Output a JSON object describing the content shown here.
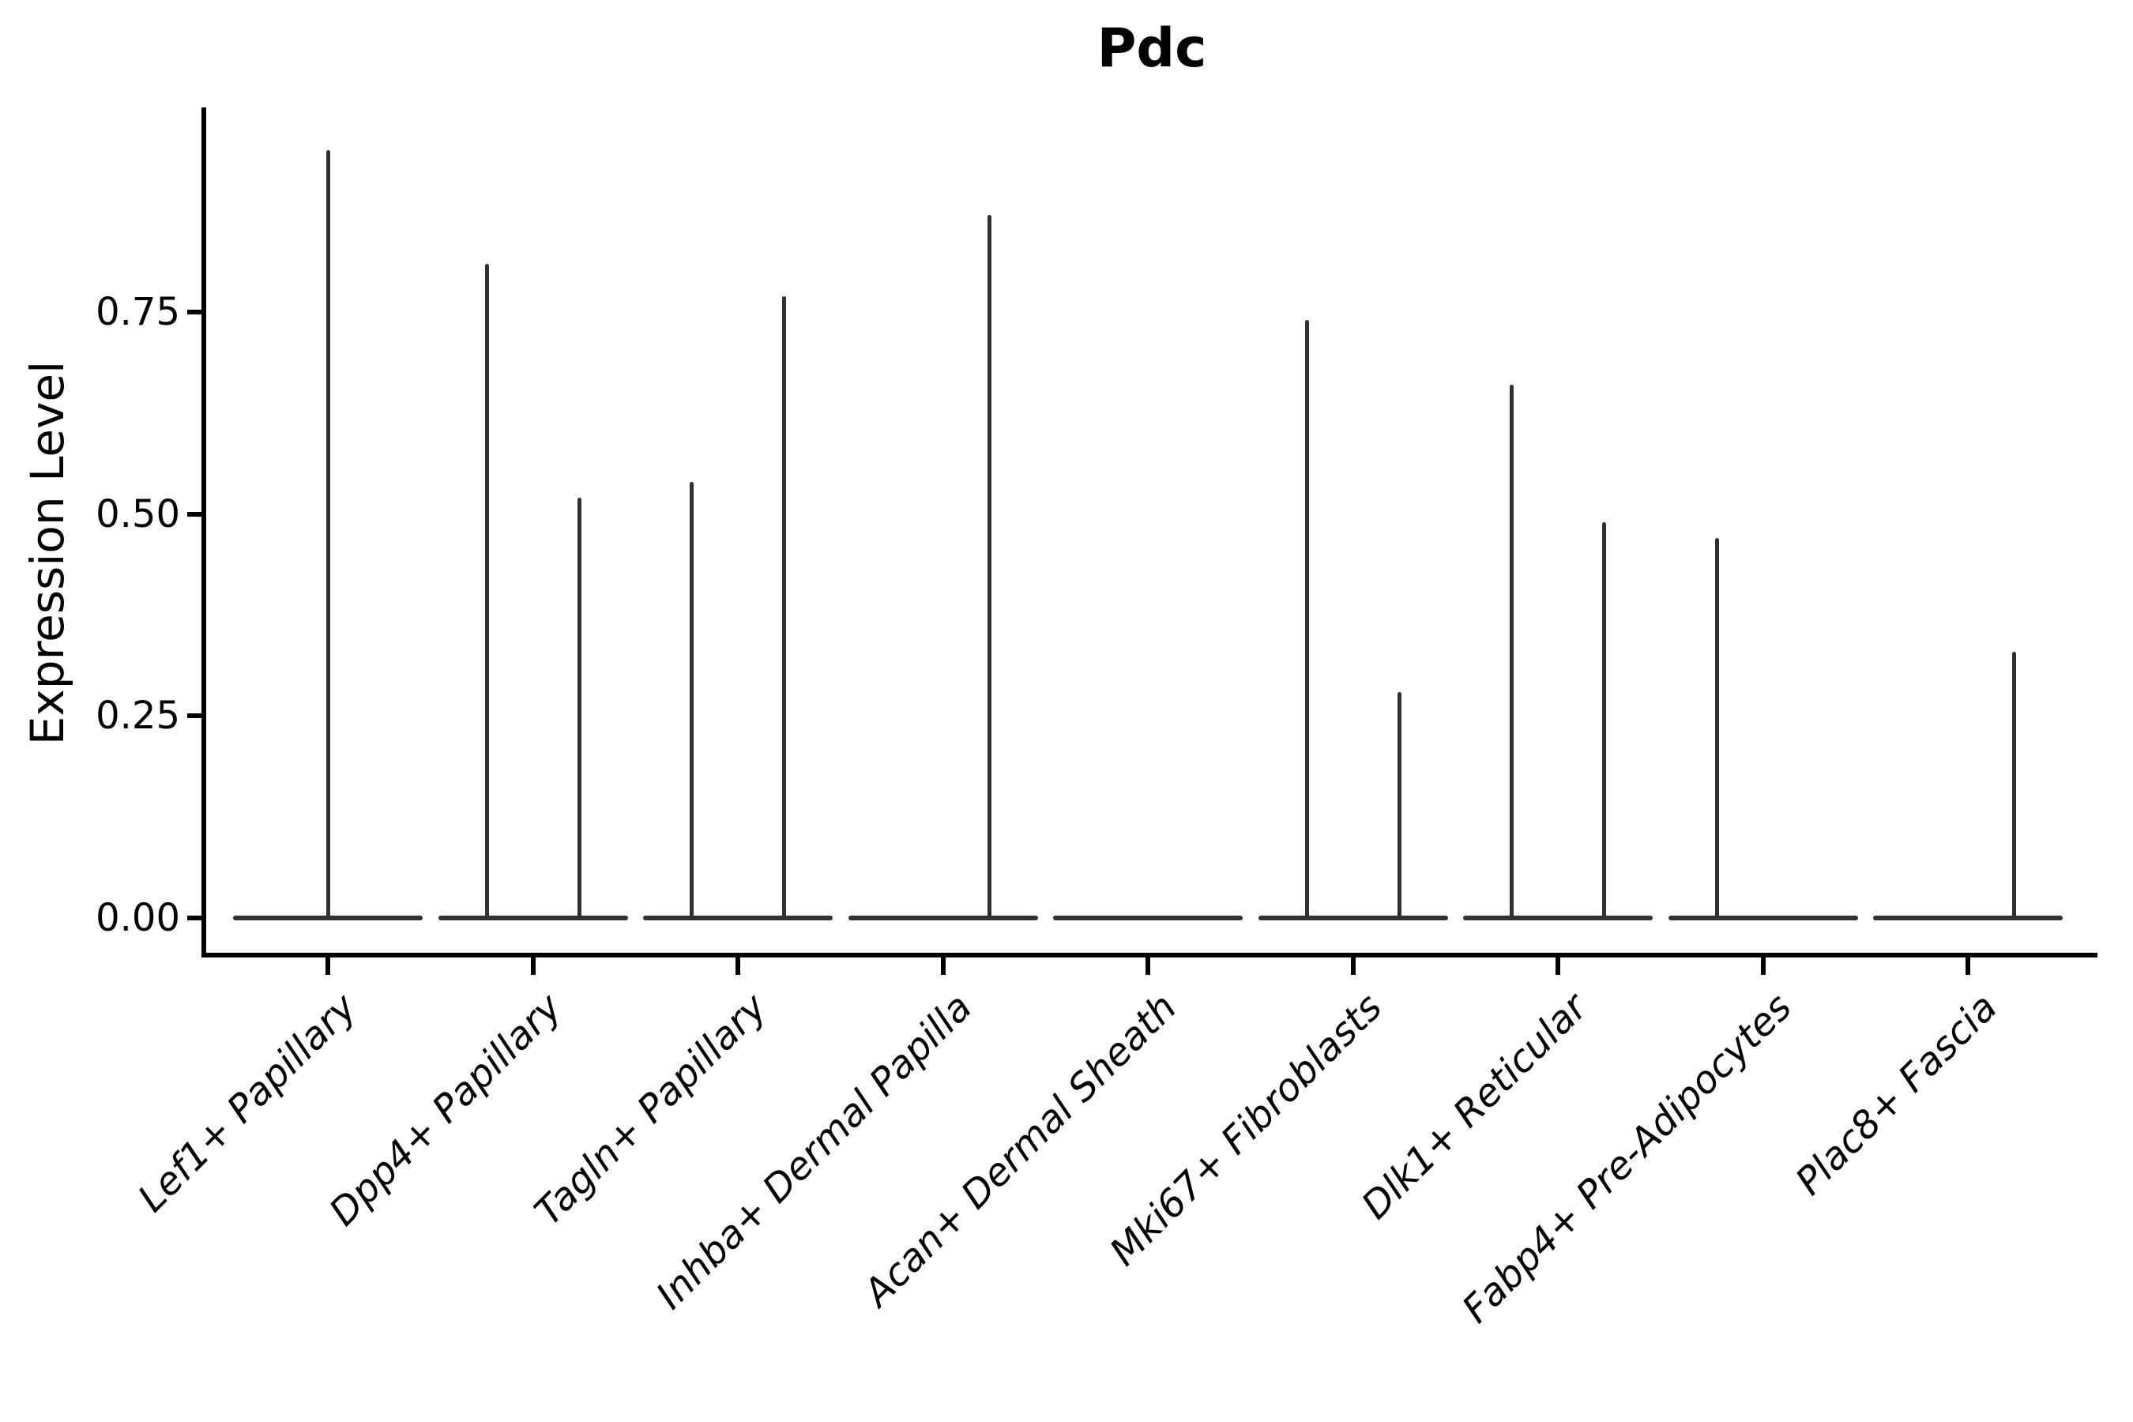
{
  "title": "Pdc",
  "axes": {
    "y_label": "Expression Level",
    "y_tick_labels": [
      "0.00",
      "0.25",
      "0.50",
      "0.75"
    ],
    "y_tick_values": [
      0.0,
      0.25,
      0.5,
      0.75
    ]
  },
  "chart_data": {
    "type": "violin",
    "title": "Pdc",
    "xlabel": "",
    "ylabel": "Expression Level",
    "ylim": [
      0,
      1.0
    ],
    "y_ticks": [
      0.0,
      0.25,
      0.5,
      0.75
    ],
    "grid": false,
    "legend_position": "none",
    "categories": [
      "Lef1+ Papillary",
      "Dpp4+ Papillary",
      "Tagln+ Papillary",
      "Inhba+ Dermal Papilla",
      "Acan+ Dermal Sheath",
      "Mki67+ Fibroblasts",
      "Dlk1+ Reticular",
      "Fabp4+ Pre-Adipocytes",
      "Plac8+ Fascia"
    ],
    "series": [
      {
        "name": "Lef1+ Papillary",
        "zero_body": true,
        "spikes": [
          {
            "position": "center",
            "max_expression": 0.95
          }
        ]
      },
      {
        "name": "Dpp4+ Papillary",
        "zero_body": true,
        "spikes": [
          {
            "position": "left",
            "max_expression": 0.81
          },
          {
            "position": "right",
            "max_expression": 0.52
          }
        ]
      },
      {
        "name": "Tagln+ Papillary",
        "zero_body": true,
        "spikes": [
          {
            "position": "left",
            "max_expression": 0.54
          },
          {
            "position": "right",
            "max_expression": 0.77
          }
        ]
      },
      {
        "name": "Inhba+ Dermal Papilla",
        "zero_body": true,
        "spikes": [
          {
            "position": "right",
            "max_expression": 0.87
          }
        ]
      },
      {
        "name": "Acan+ Dermal Sheath",
        "zero_body": true,
        "spikes": []
      },
      {
        "name": "Mki67+ Fibroblasts",
        "zero_body": true,
        "spikes": [
          {
            "position": "left",
            "max_expression": 0.74
          },
          {
            "position": "right",
            "max_expression": 0.28
          }
        ]
      },
      {
        "name": "Dlk1+ Reticular",
        "zero_body": true,
        "spikes": [
          {
            "position": "left",
            "max_expression": 0.66
          },
          {
            "position": "right",
            "max_expression": 0.49
          }
        ]
      },
      {
        "name": "Fabp4+ Pre-Adipocytes",
        "zero_body": true,
        "spikes": [
          {
            "position": "left",
            "max_expression": 0.47
          }
        ]
      },
      {
        "name": "Plac8+ Fascia",
        "zero_body": true,
        "spikes": [
          {
            "position": "right",
            "max_expression": 0.33
          }
        ]
      }
    ]
  },
  "colors": {
    "violin_line": "#303030",
    "axis": "#000000",
    "text": "#000000",
    "background": "#ffffff"
  }
}
